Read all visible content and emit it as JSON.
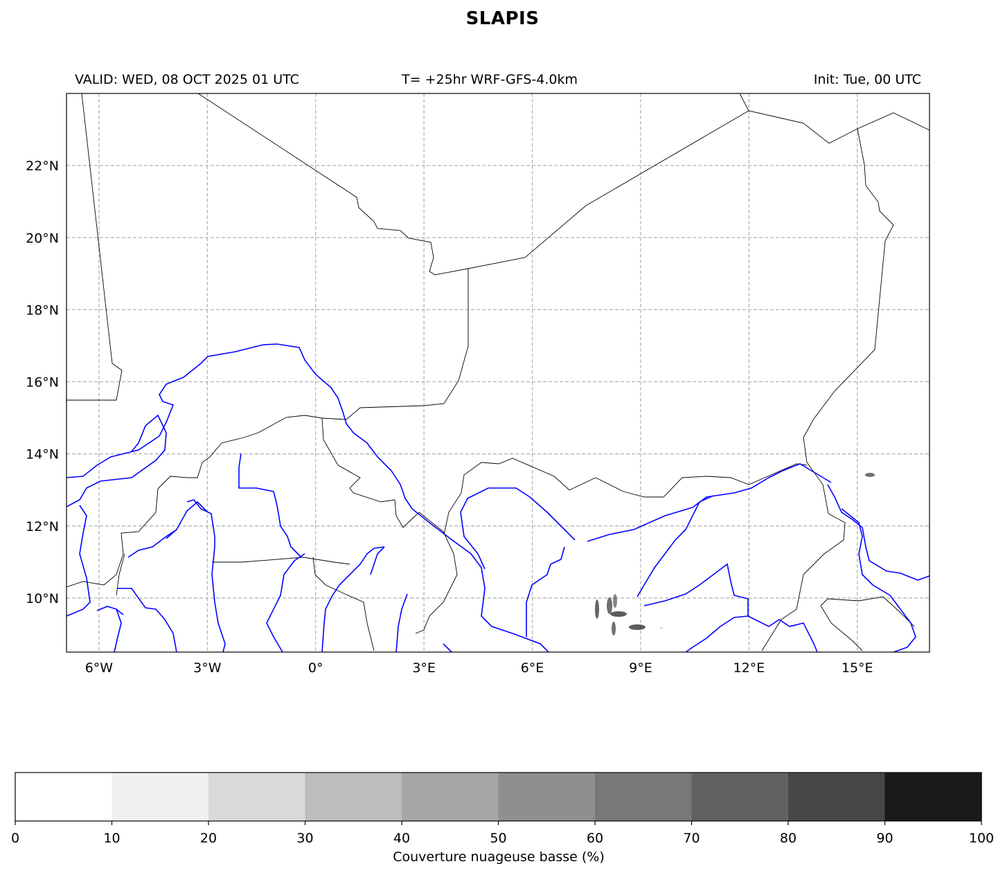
{
  "title": "SLAPIS",
  "header": {
    "valid": "VALID: WED, 08 OCT 2025 01 UTC",
    "run": "T= +25hr WRF-GFS-4.0km",
    "init": "Init: Tue, 00 UTC"
  },
  "map": {
    "lon_range": [
      -6.9,
      17.0
    ],
    "lat_range": [
      8.5,
      24.0
    ],
    "lon_ticks": [
      {
        "value": -6,
        "label": "6°W"
      },
      {
        "value": -3,
        "label": "3°W"
      },
      {
        "value": 0,
        "label": "0°"
      },
      {
        "value": 3,
        "label": "3°E"
      },
      {
        "value": 6,
        "label": "6°E"
      },
      {
        "value": 9,
        "label": "9°E"
      },
      {
        "value": 12,
        "label": "12°E"
      },
      {
        "value": 15,
        "label": "15°E"
      }
    ],
    "lat_ticks": [
      {
        "value": 10,
        "label": "10°N"
      },
      {
        "value": 12,
        "label": "12°N"
      },
      {
        "value": 14,
        "label": "14°N"
      },
      {
        "value": 16,
        "label": "16°N"
      },
      {
        "value": 18,
        "label": "18°N"
      },
      {
        "value": 20,
        "label": "20°N"
      },
      {
        "value": 22,
        "label": "22°N"
      }
    ],
    "gridlines": true,
    "border_color": "#000000",
    "river_color": "#0000ff"
  },
  "colorbar": {
    "label": "Couverture nuageuse basse (%)",
    "ticks": [
      "0",
      "10",
      "20",
      "30",
      "40",
      "50",
      "60",
      "70",
      "80",
      "90",
      "100"
    ],
    "colors": [
      "#ffffff",
      "#f0f0f0",
      "#d9d9d9",
      "#bdbdbd",
      "#a6a6a6",
      "#8f8f8f",
      "#787878",
      "#616161",
      "#474747",
      "#1a1a1a"
    ]
  }
}
